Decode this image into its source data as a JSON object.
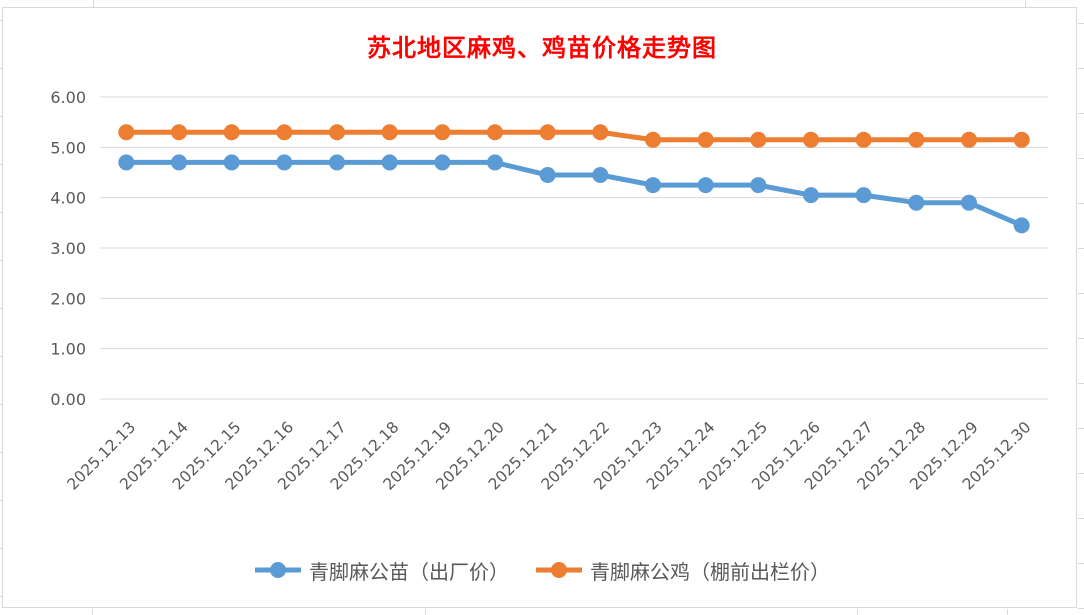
{
  "chart_data": {
    "type": "line",
    "title": "苏北地区麻鸡、鸡苗价格走势图",
    "title_color": "#FF0000",
    "categories": [
      "2025.12.13",
      "2025.12.14",
      "2025.12.15",
      "2025.12.16",
      "2025.12.17",
      "2025.12.18",
      "2025.12.19",
      "2025.12.20",
      "2025.12.21",
      "2025.12.22",
      "2025.12.23",
      "2025.12.24",
      "2025.12.25",
      "2025.12.26",
      "2025.12.27",
      "2025.12.28",
      "2025.12.29",
      "2025.12.30"
    ],
    "series": [
      {
        "name": "青脚麻公苗（出厂价）",
        "color": "#5B9BD5",
        "values": [
          4.7,
          4.7,
          4.7,
          4.7,
          4.7,
          4.7,
          4.7,
          4.7,
          4.45,
          4.45,
          4.25,
          4.25,
          4.25,
          4.05,
          4.05,
          3.9,
          3.9,
          3.45
        ]
      },
      {
        "name": "青脚麻公鸡（棚前出栏价）",
        "color": "#ED7D31",
        "values": [
          5.3,
          5.3,
          5.3,
          5.3,
          5.3,
          5.3,
          5.3,
          5.3,
          5.3,
          5.3,
          5.15,
          5.15,
          5.15,
          5.15,
          5.15,
          5.15,
          5.15,
          5.15
        ]
      }
    ],
    "ylim": [
      0,
      6
    ],
    "ytick_labels": [
      "0.00",
      "1.00",
      "2.00",
      "3.00",
      "4.00",
      "5.00",
      "6.00"
    ],
    "grid": true,
    "legend_position": "bottom",
    "axis_text_color": "#595959",
    "gridline_color": "#D9D9D9"
  }
}
